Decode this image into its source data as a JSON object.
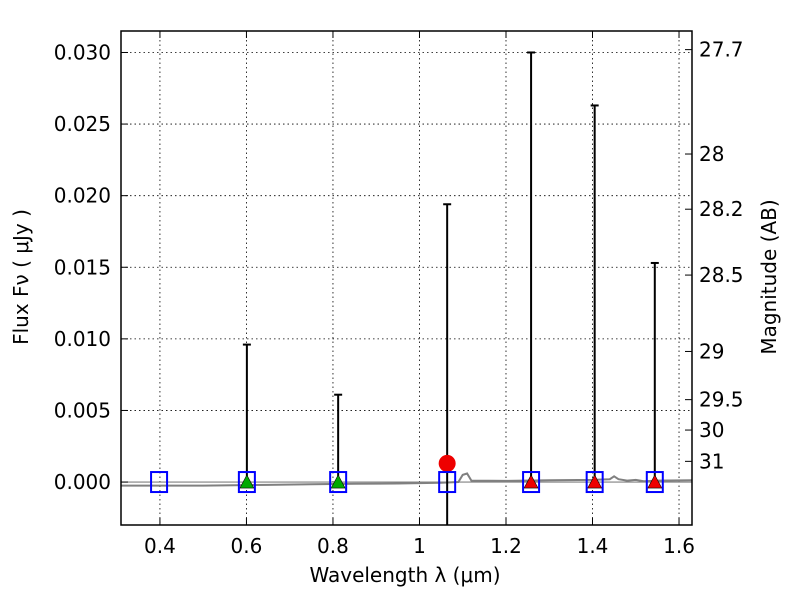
{
  "chart_data": {
    "type": "scatter",
    "xlabel": "Wavelength  λ (μm)",
    "ylabel": "Flux  Fν  ( μJy )",
    "y2label": "Magnitude (AB)",
    "xlim": [
      0.31,
      1.63
    ],
    "ylim": [
      -0.003,
      0.0315
    ],
    "grid": true,
    "x_ticks": [
      {
        "v": 0.4,
        "label": "0.4"
      },
      {
        "v": 0.6,
        "label": "0.6"
      },
      {
        "v": 0.8,
        "label": "0.8"
      },
      {
        "v": 1.0,
        "label": "1"
      },
      {
        "v": 1.2,
        "label": "1.2"
      },
      {
        "v": 1.4,
        "label": "1.4"
      },
      {
        "v": 1.6,
        "label": "1.6"
      }
    ],
    "y_ticks": [
      {
        "v": 0.0,
        "label": "0.000"
      },
      {
        "v": 0.005,
        "label": "0.005"
      },
      {
        "v": 0.01,
        "label": "0.010"
      },
      {
        "v": 0.015,
        "label": "0.015"
      },
      {
        "v": 0.02,
        "label": "0.020"
      },
      {
        "v": 0.025,
        "label": "0.025"
      },
      {
        "v": 0.03,
        "label": "0.030"
      }
    ],
    "mag_ticks": [
      {
        "mag": 27.7,
        "label": "27.7"
      },
      {
        "mag": 28.0,
        "label": "28"
      },
      {
        "mag": 28.2,
        "label": "28.2"
      },
      {
        "mag": 28.5,
        "label": "28.5"
      },
      {
        "mag": 29.0,
        "label": "29"
      },
      {
        "mag": 29.5,
        "label": "29.5"
      },
      {
        "mag": 30.0,
        "label": "30"
      },
      {
        "mag": 31.0,
        "label": "31"
      }
    ],
    "sed_model": [
      [
        0.31,
        -0.00025
      ],
      [
        0.5,
        -0.00025
      ],
      [
        0.65,
        -0.0002
      ],
      [
        0.75,
        -0.00015
      ],
      [
        0.85,
        -0.00012
      ],
      [
        0.95,
        -0.0001
      ],
      [
        1.05,
        -5e-05
      ],
      [
        1.09,
        0.0
      ],
      [
        1.1,
        0.0005
      ],
      [
        1.11,
        0.0006
      ],
      [
        1.12,
        0.0001
      ],
      [
        1.2,
        8e-05
      ],
      [
        1.3,
        0.00012
      ],
      [
        1.4,
        0.00015
      ],
      [
        1.44,
        0.0002
      ],
      [
        1.45,
        0.0004
      ],
      [
        1.46,
        0.0002
      ],
      [
        1.48,
        0.0001
      ],
      [
        1.5,
        0.00015
      ],
      [
        1.52,
        5e-05
      ],
      [
        1.55,
        0.0001
      ],
      [
        1.63,
        0.00012
      ]
    ],
    "bands": [
      {
        "x": 0.398,
        "model": 0.0,
        "observed": null,
        "err_low": null,
        "err_high": null,
        "marker": null
      },
      {
        "x": 0.601,
        "model": 0.0,
        "observed": 0.0,
        "err_low": 0.0,
        "err_high": 0.0096,
        "marker": "green-triangle"
      },
      {
        "x": 0.812,
        "model": 0.0,
        "observed": 0.0,
        "err_low": 0.0,
        "err_high": 0.0061,
        "marker": "green-triangle"
      },
      {
        "x": 1.064,
        "model": 0.0,
        "observed": 0.0013,
        "err_low": -0.0035,
        "err_high": 0.0194,
        "marker": "red-circle"
      },
      {
        "x": 1.258,
        "model": 0.0,
        "observed": 0.0,
        "err_low": 0.0,
        "err_high": 0.03,
        "marker": "red-triangle"
      },
      {
        "x": 1.405,
        "model": 0.0,
        "observed": 0.0,
        "err_low": 0.0,
        "err_high": 0.0263,
        "marker": "red-triangle"
      },
      {
        "x": 1.544,
        "model": 0.0,
        "observed": 0.0,
        "err_low": 0.0,
        "err_high": 0.0153,
        "marker": "red-triangle"
      }
    ]
  },
  "colors": {
    "model_box": "#0000ff",
    "sed_line": "#808080",
    "zero_line": "#808080",
    "green": "#00aa00",
    "red": "#ee0000",
    "error_bar": "#000000"
  }
}
